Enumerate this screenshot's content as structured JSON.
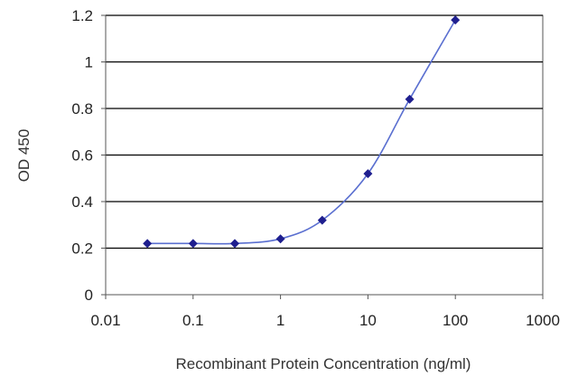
{
  "chart_data": {
    "type": "scatter",
    "title": "",
    "xlabel": "Recombinant Protein Concentration (ng/ml)",
    "ylabel": "OD 450",
    "xscale": "log",
    "xlim": [
      0.01,
      1000
    ],
    "ylim": [
      0,
      1.2
    ],
    "xticks": [
      "0.01",
      "0.1",
      "1",
      "10",
      "100",
      "1000"
    ],
    "xtick_values": [
      0.01,
      0.1,
      1,
      10,
      100,
      1000
    ],
    "yticks": [
      "0",
      "0.2",
      "0.4",
      "0.6",
      "0.8",
      "1",
      "1.2"
    ],
    "ytick_values": [
      0,
      0.2,
      0.4,
      0.6,
      0.8,
      1,
      1.2
    ],
    "grid": "horizontal",
    "legend": "none",
    "series": [
      {
        "x": [
          0.03,
          0.1,
          0.3,
          1,
          3,
          10,
          30,
          100
        ],
        "y": [
          0.22,
          0.22,
          0.22,
          0.24,
          0.32,
          0.52,
          0.84,
          1.18
        ],
        "marker": "diamond",
        "line": "smooth"
      }
    ],
    "colors": {
      "series": "#1f1f8f",
      "curve": "#5a6fd0",
      "grid": "#000000",
      "plot_border": "#555555"
    }
  }
}
